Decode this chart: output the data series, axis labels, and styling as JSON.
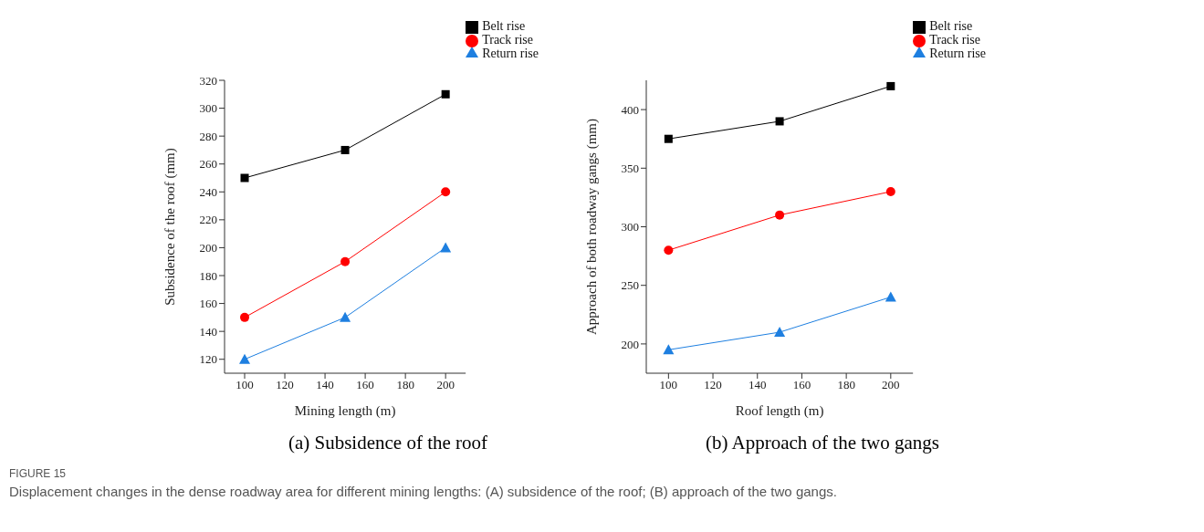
{
  "chart_data": [
    {
      "type": "line",
      "title": "(a) Subsidence of the roof",
      "xlabel": "Mining length (m)",
      "ylabel": "Subsidence of the roof (mm)",
      "x": [
        100,
        150,
        200
      ],
      "xlim": [
        90,
        210
      ],
      "xticks": [
        100,
        120,
        140,
        160,
        180,
        200
      ],
      "ylim": [
        110,
        320
      ],
      "yticks": [
        120,
        140,
        160,
        180,
        200,
        220,
        240,
        260,
        280,
        300,
        320
      ],
      "legend": "top right",
      "annotations": [
        "FIGURE 15",
        "Displacement changes in the dense roadway area for different mining lengths: (A) subsidence of the roof; (B) approach of the two gangs."
      ],
      "series": [
        {
          "name": "Belt rise",
          "color": "#000000",
          "marker": "square",
          "values": [
            250,
            270,
            310
          ]
        },
        {
          "name": "Track rise",
          "color": "#ff0000",
          "marker": "circle",
          "values": [
            150,
            190,
            240
          ]
        },
        {
          "name": "Return rise",
          "color": "#1e7fe0",
          "marker": "triangle",
          "values": [
            120,
            150,
            200
          ]
        }
      ]
    },
    {
      "type": "line",
      "title": "(b) Approach of the two gangs",
      "xlabel": "Roof length (m)",
      "ylabel": "Approach of both roadway gangs (mm)",
      "x": [
        100,
        150,
        200
      ],
      "xlim": [
        90,
        210
      ],
      "xticks": [
        100,
        120,
        140,
        160,
        180,
        200
      ],
      "ylim": [
        175,
        425
      ],
      "yticks": [
        200,
        250,
        300,
        350,
        400
      ],
      "legend": "top right",
      "series": [
        {
          "name": "Belt rise",
          "color": "#000000",
          "marker": "square",
          "values": [
            375,
            390,
            420
          ]
        },
        {
          "name": "Track rise",
          "color": "#ff0000",
          "marker": "circle",
          "values": [
            280,
            310,
            330
          ]
        },
        {
          "name": "Return rise",
          "color": "#1e7fe0",
          "marker": "triangle",
          "values": [
            195,
            210,
            240
          ]
        }
      ]
    }
  ]
}
